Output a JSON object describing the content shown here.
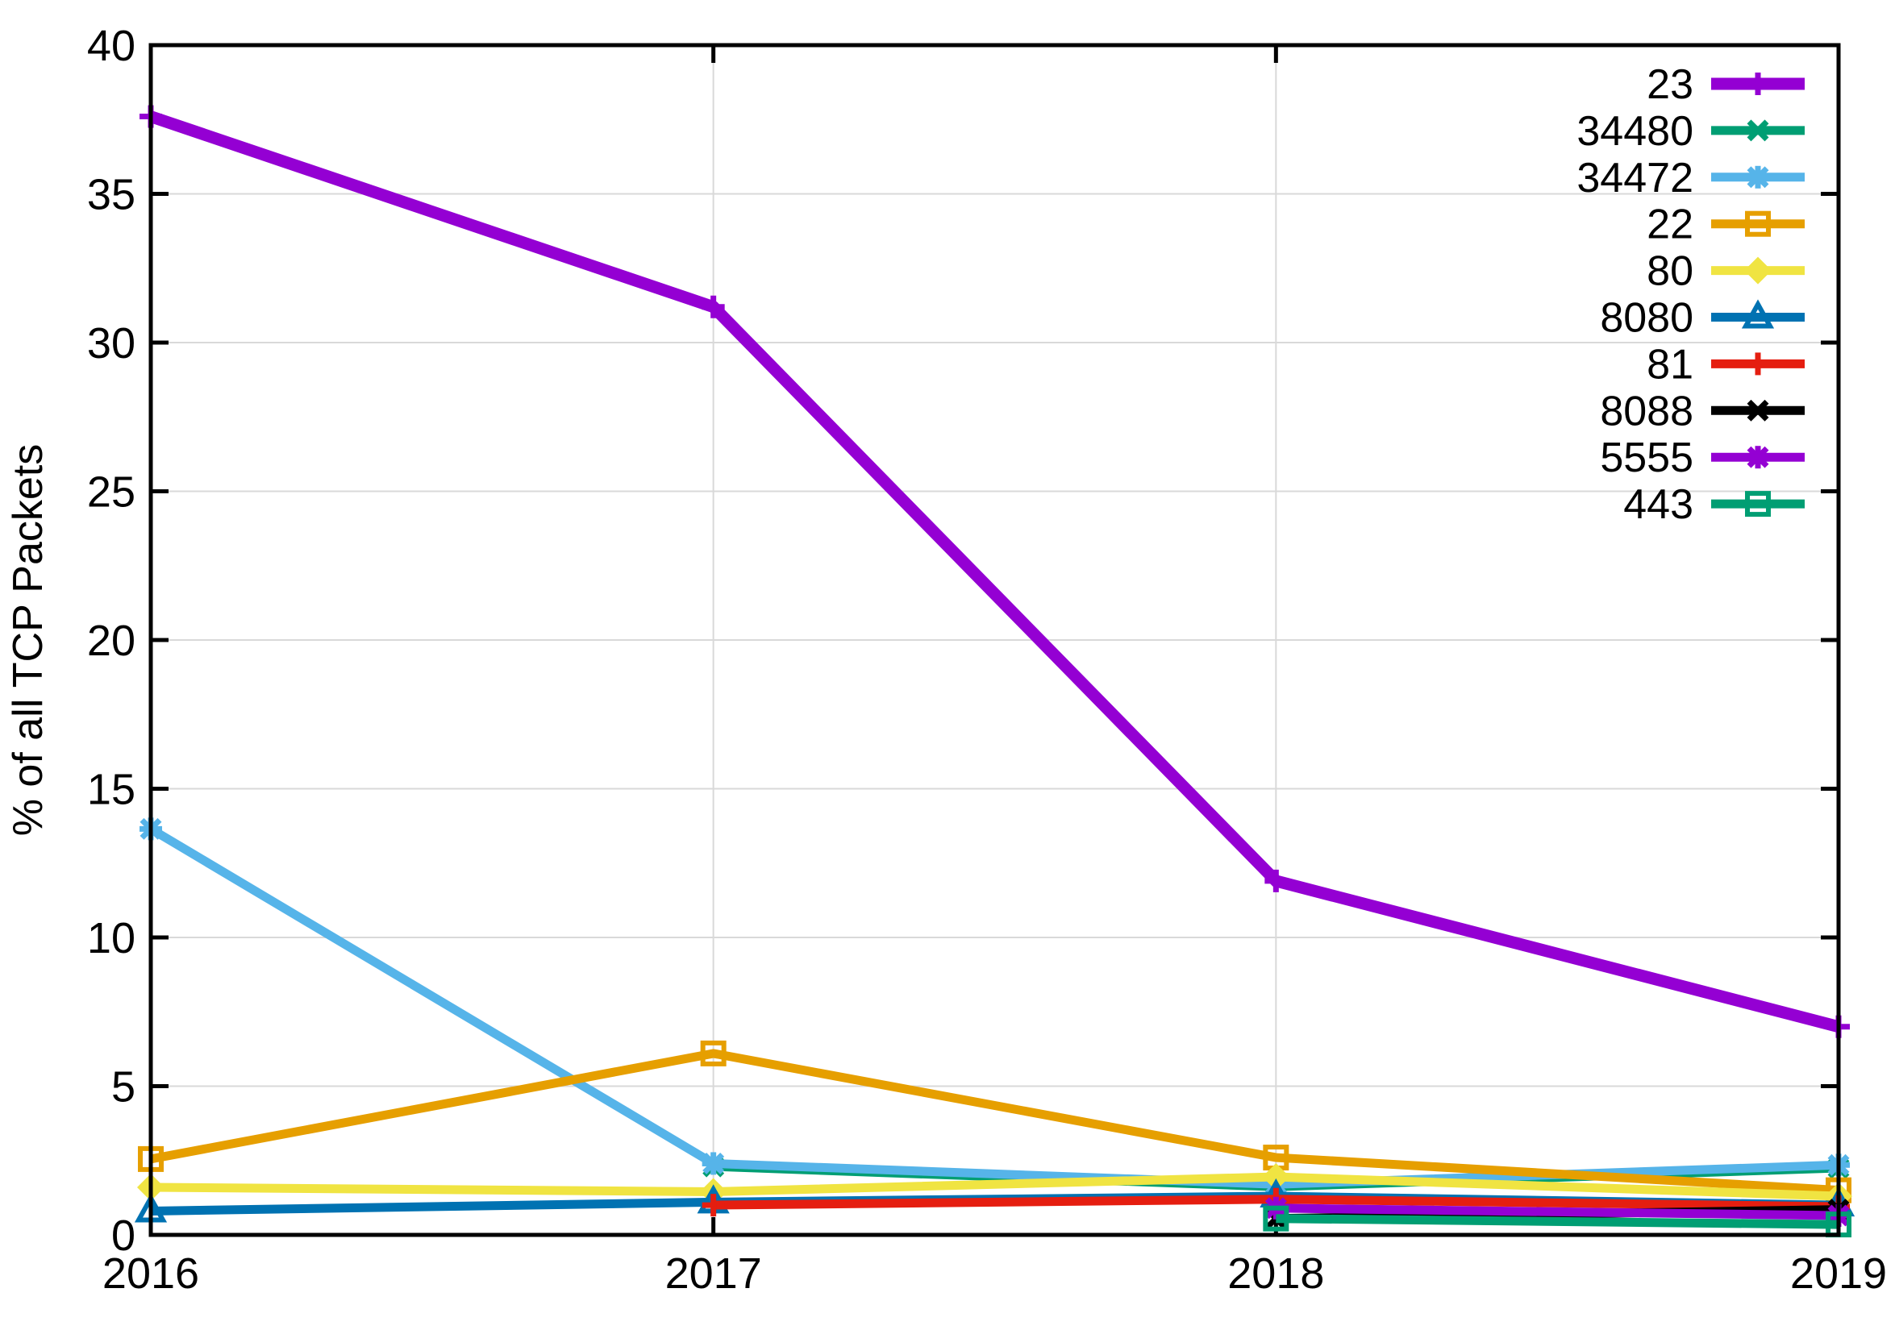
{
  "chart_data": {
    "type": "line",
    "title": "",
    "xlabel": "",
    "ylabel": "% of all TCP Packets",
    "x": [
      2016,
      2017,
      2018,
      2019
    ],
    "x_tick_labels": [
      "2016",
      "2017",
      "2018",
      "2019"
    ],
    "ylim": [
      0,
      40
    ],
    "ytick_step": 5,
    "y_tick_labels": [
      "0",
      "5",
      "10",
      "15",
      "20",
      "25",
      "30",
      "35",
      "40"
    ],
    "grid": true,
    "legend_position": "top-right-inside",
    "colors": {
      "background": "#ffffff",
      "grid": "#d9d9d9",
      "axis": "#000000",
      "purple": "#9400d3",
      "green": "#009e73",
      "skyblue": "#56b4e9",
      "orange": "#e69f00",
      "yellow": "#f0e442",
      "blue": "#0072b2",
      "red": "#e51e10",
      "black": "#000000"
    },
    "series": [
      {
        "name": "23",
        "color": "#9400d3",
        "marker": "plus",
        "line_width": 15,
        "values": [
          37.6,
          31.2,
          11.9,
          7.0
        ]
      },
      {
        "name": "34480",
        "color": "#009e73",
        "marker": "cross",
        "line_width": 11,
        "values": [
          null,
          2.3,
          1.62,
          2.25
        ]
      },
      {
        "name": "34472",
        "color": "#56b4e9",
        "marker": "asterisk",
        "line_width": 11,
        "values": [
          13.65,
          2.4,
          1.7,
          2.35
        ]
      },
      {
        "name": "22",
        "color": "#e69f00",
        "marker": "square-open",
        "line_width": 11,
        "values": [
          2.55,
          6.1,
          2.6,
          1.5
        ]
      },
      {
        "name": "80",
        "color": "#f0e442",
        "marker": "diamond-filled",
        "line_width": 11,
        "values": [
          1.6,
          1.45,
          1.95,
          1.3
        ]
      },
      {
        "name": "8080",
        "color": "#0072b2",
        "marker": "triangle-open",
        "line_width": 11,
        "values": [
          0.8,
          1.1,
          1.3,
          1.0
        ]
      },
      {
        "name": "81",
        "color": "#e51e10",
        "marker": "plus",
        "line_width": 11,
        "values": [
          null,
          1.0,
          1.2,
          0.95
        ]
      },
      {
        "name": "8088",
        "color": "#000000",
        "marker": "cross",
        "line_width": 11,
        "values": [
          null,
          null,
          0.55,
          0.85
        ]
      },
      {
        "name": "5555",
        "color": "#9400d3",
        "marker": "asterisk",
        "line_width": 11,
        "values": [
          null,
          null,
          0.9,
          0.65
        ]
      },
      {
        "name": "443",
        "color": "#009e73",
        "marker": "square-open",
        "line_width": 11,
        "values": [
          null,
          null,
          0.55,
          0.35
        ]
      }
    ]
  }
}
